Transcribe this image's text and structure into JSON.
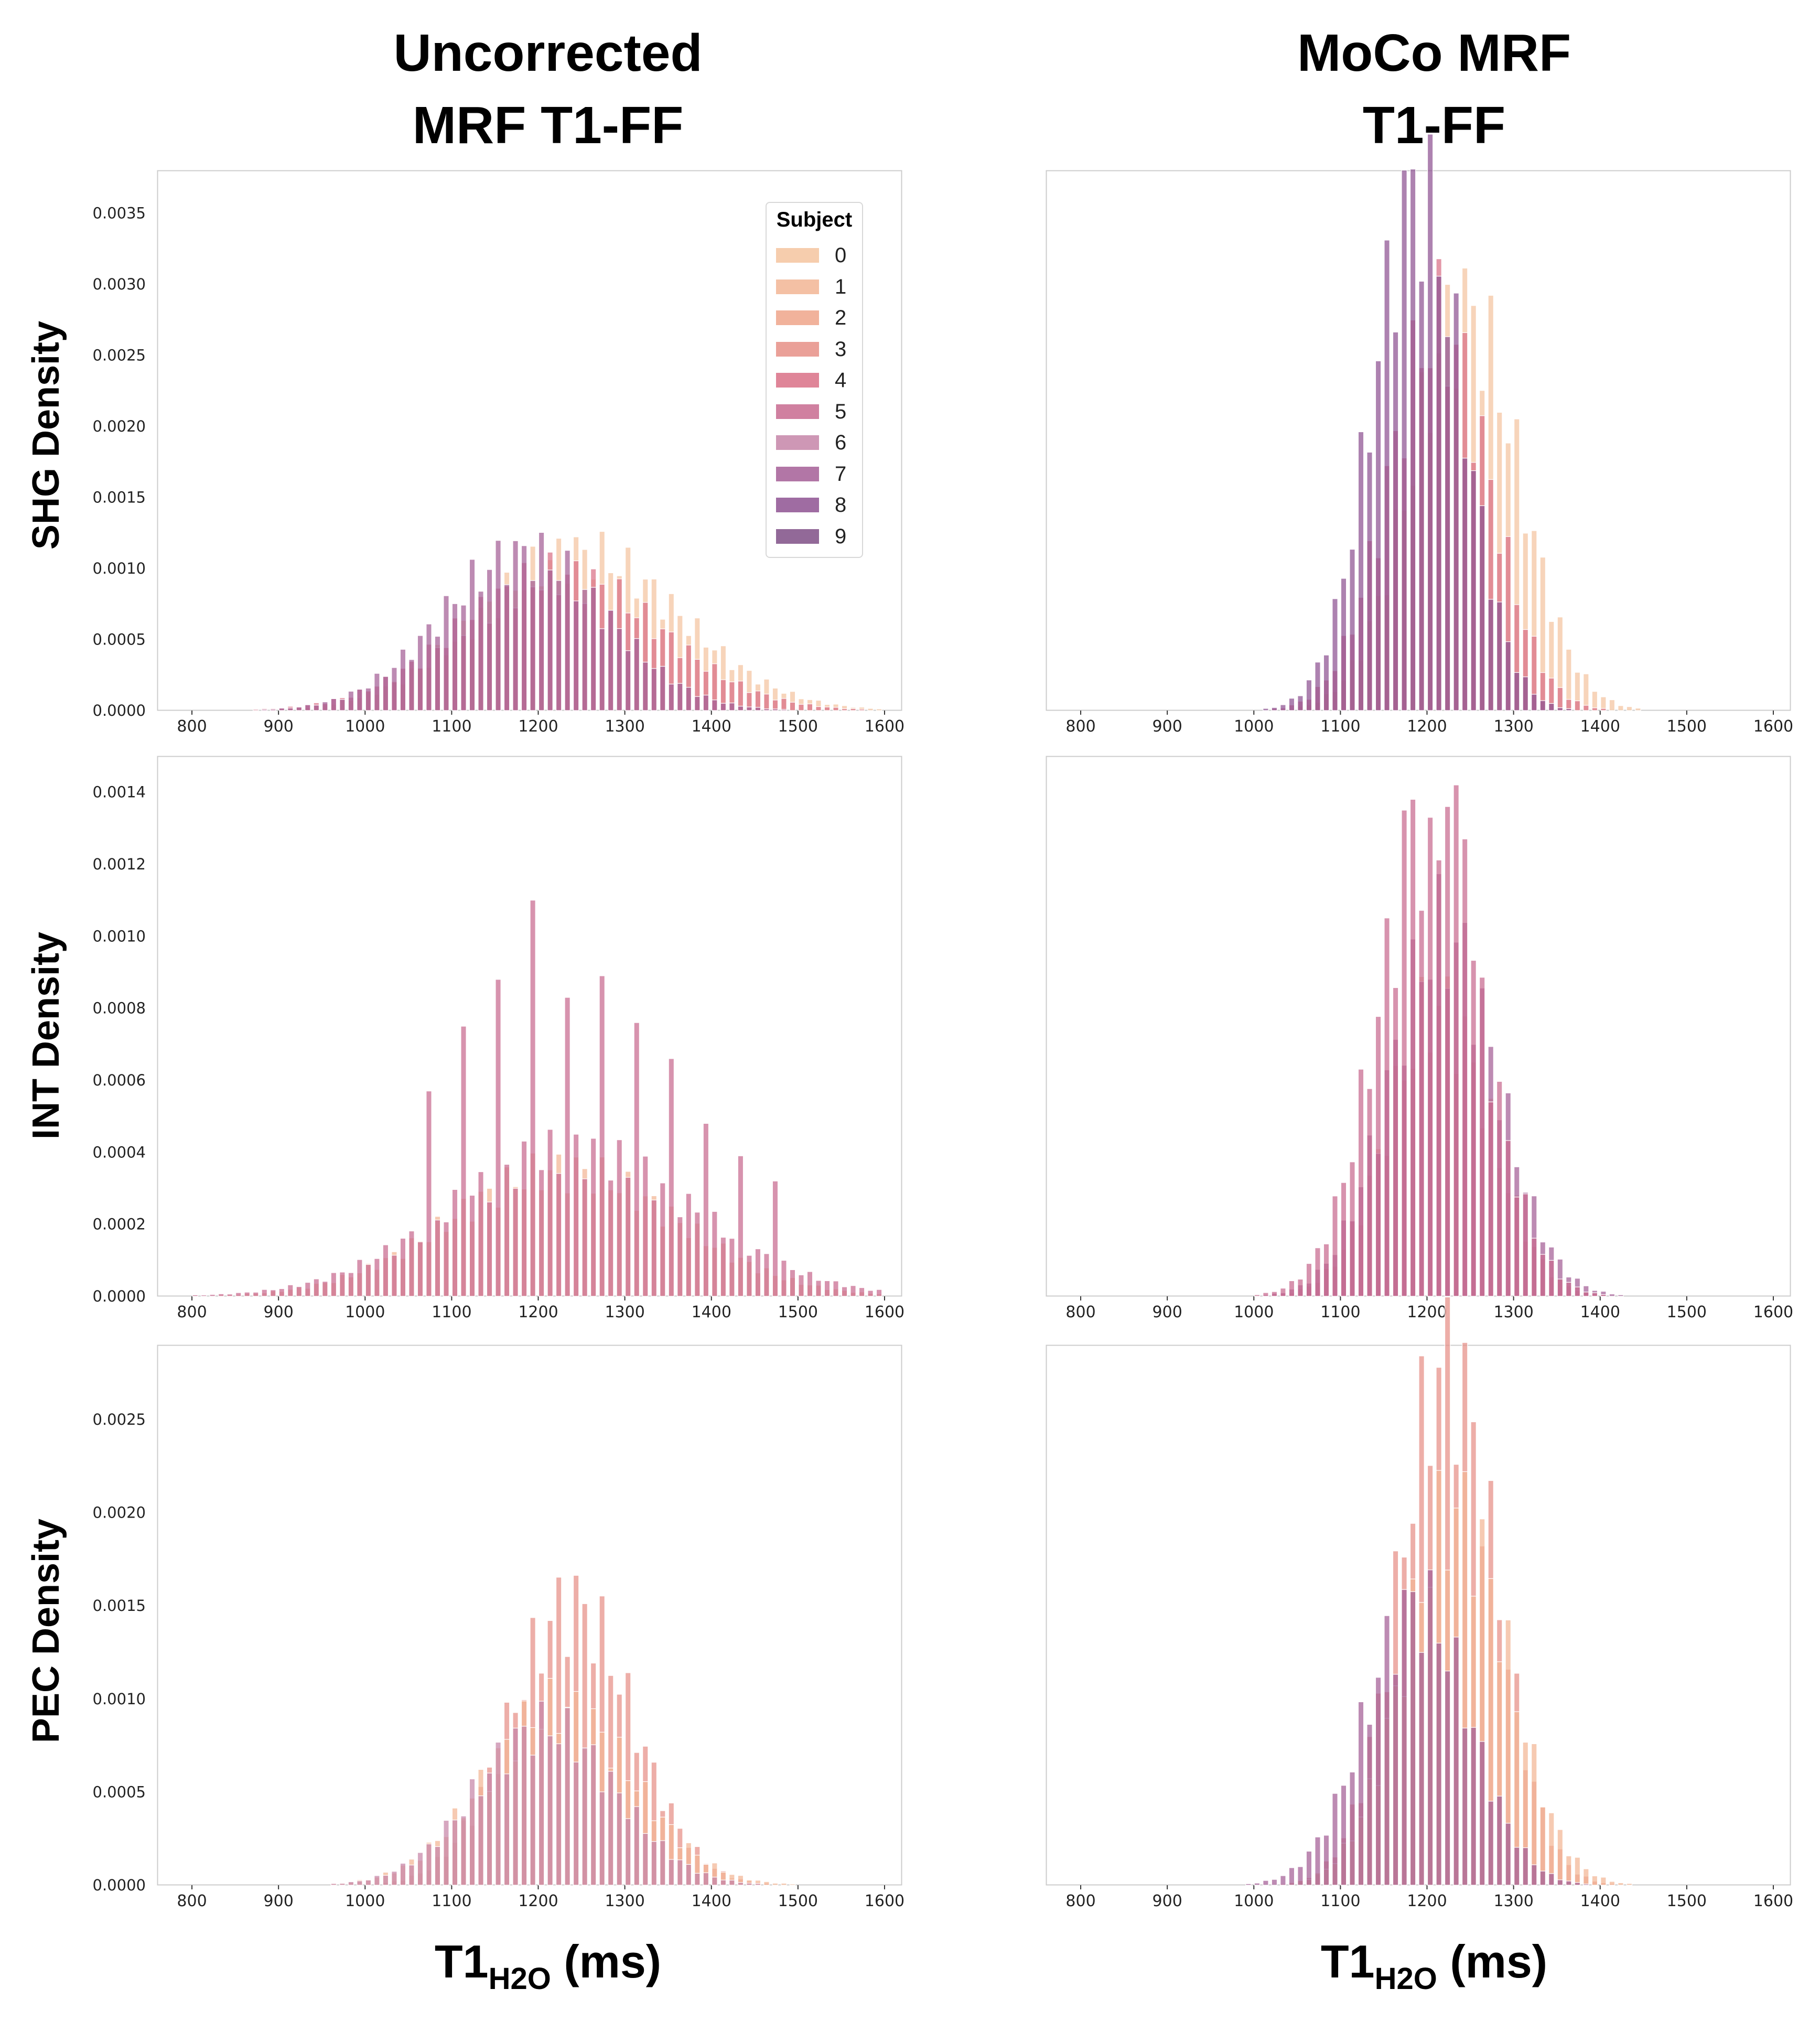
{
  "columns": [
    {
      "title_line1": "Uncorrected",
      "title_line2": "MRF T1-FF"
    },
    {
      "title_line1": "MoCo MRF",
      "title_line2": "T1-FF"
    }
  ],
  "rows": [
    {
      "label": "SHG Density"
    },
    {
      "label": "INT Density"
    },
    {
      "label": "PEC Density"
    }
  ],
  "xlabel": {
    "main": "T1",
    "sub": "H2O",
    "unit": "(ms)"
  },
  "legend": {
    "title": "Subject",
    "items": [
      "0",
      "1",
      "2",
      "3",
      "4",
      "5",
      "6",
      "7",
      "8",
      "9"
    ],
    "colors": [
      "#f4c49f",
      "#f2b594",
      "#eea58a",
      "#e68f86",
      "#d97086",
      "#c86a8f",
      "#c685a8",
      "#a45e96",
      "#8e5292",
      "#7f4f86"
    ]
  },
  "chart_data": [
    {
      "type": "bar",
      "panel": "uncorrected-SHG",
      "row": 0,
      "col": 0,
      "xlim": [
        760,
        1620
      ],
      "ylim": [
        0,
        0.0038
      ],
      "xticks": [
        "800",
        "900",
        "1000",
        "1100",
        "1200",
        "1300",
        "1400",
        "1500",
        "1600"
      ],
      "yticks": [
        "0.0000",
        "0.0005",
        "0.0010",
        "0.0015",
        "0.0020",
        "0.0025",
        "0.0030",
        "0.0035"
      ],
      "bin_start": 800,
      "bin_width": 10,
      "bins": 80,
      "envelope": [
        {
          "sigma": 115,
          "peak": 0.0011,
          "mu": 1250,
          "color": 0
        },
        {
          "sigma": 115,
          "peak": 0.00095,
          "mu": 1225,
          "color": 4
        },
        {
          "sigma": 95,
          "peak": 0.0011,
          "mu": 1185,
          "color": 7
        }
      ],
      "grid": false,
      "legend": "top-right"
    },
    {
      "type": "bar",
      "panel": "moco-SHG",
      "row": 0,
      "col": 1,
      "xlim": [
        760,
        1620
      ],
      "ylim": [
        0,
        0.0038
      ],
      "xticks": [
        "800",
        "900",
        "1000",
        "1100",
        "1200",
        "1300",
        "1400",
        "1500",
        "1600"
      ],
      "bin_start": 800,
      "bin_width": 10,
      "bins": 80,
      "envelope": [
        {
          "sigma": 62,
          "peak": 0.0028,
          "mu": 1245,
          "color": 0
        },
        {
          "sigma": 58,
          "peak": 0.0027,
          "mu": 1215,
          "color": 4
        },
        {
          "sigma": 52,
          "peak": 0.00363,
          "mu": 1190,
          "color": 8
        }
      ],
      "grid": false
    },
    {
      "type": "bar",
      "panel": "uncorrected-INT",
      "row": 1,
      "col": 0,
      "xlim": [
        760,
        1620
      ],
      "ylim": [
        0,
        0.0015
      ],
      "xticks": [
        "800",
        "900",
        "1000",
        "1100",
        "1200",
        "1300",
        "1400",
        "1500",
        "1600"
      ],
      "yticks": [
        "0.0000",
        "0.0002",
        "0.0004",
        "0.0006",
        "0.0008",
        "0.0010",
        "0.0012",
        "0.0014"
      ],
      "bin_start": 800,
      "bin_width": 10,
      "bins": 80,
      "peaks_by_bin": {
        "27": 0.00057,
        "31": 0.00075,
        "35": 0.00088,
        "39": 0.0011,
        "43": 0.00083,
        "47": 0.00089,
        "51": 0.00076,
        "55": 0.00066,
        "59": 0.00048,
        "63": 0.00039,
        "67": 0.00032
      },
      "envelope": [
        {
          "sigma": 130,
          "peak": 0.00035,
          "mu": 1230,
          "color": 1
        },
        {
          "sigma": 140,
          "peak": 0.0004,
          "mu": 1240,
          "color": 5
        }
      ],
      "grid": false
    },
    {
      "type": "bar",
      "panel": "moco-INT",
      "row": 1,
      "col": 1,
      "xlim": [
        760,
        1620
      ],
      "ylim": [
        0,
        0.0015
      ],
      "xticks": [
        "800",
        "900",
        "1000",
        "1100",
        "1200",
        "1300",
        "1400",
        "1500",
        "1600"
      ],
      "bin_start": 800,
      "bin_width": 10,
      "bins": 80,
      "peaks_by_bin": {
        "37": 0.00135,
        "38": 0.00138,
        "40": 0.00133,
        "42": 0.00136,
        "43": 0.00142,
        "44": 0.00127
      },
      "envelope": [
        {
          "sigma": 58,
          "peak": 0.0008,
          "mu": 1215,
          "color": 1
        },
        {
          "sigma": 62,
          "peak": 0.001,
          "mu": 1220,
          "color": 7
        },
        {
          "sigma": 60,
          "peak": 0.0013,
          "mu": 1205,
          "color": 5
        }
      ],
      "grid": false
    },
    {
      "type": "bar",
      "panel": "uncorrected-PEC",
      "row": 2,
      "col": 0,
      "xlim": [
        760,
        1620
      ],
      "ylim": [
        0,
        0.0029
      ],
      "xticks": [
        "800",
        "900",
        "1000",
        "1100",
        "1200",
        "1300",
        "1400",
        "1500",
        "1600"
      ],
      "yticks": [
        "0.0000",
        "0.0005",
        "0.0010",
        "0.0015",
        "0.0020",
        "0.0025"
      ],
      "bin_start": 800,
      "bin_width": 10,
      "bins": 80,
      "envelope": [
        {
          "sigma": 70,
          "peak": 0.0015,
          "mu": 1240,
          "color": 3
        },
        {
          "sigma": 85,
          "peak": 0.00095,
          "mu": 1225,
          "color": 1
        },
        {
          "sigma": 80,
          "peak": 0.00085,
          "mu": 1210,
          "color": 6
        }
      ],
      "grid": false
    },
    {
      "type": "bar",
      "panel": "moco-PEC",
      "row": 2,
      "col": 1,
      "xlim": [
        760,
        1620
      ],
      "ylim": [
        0,
        0.0029
      ],
      "xticks": [
        "800",
        "900",
        "1000",
        "1100",
        "1200",
        "1300",
        "1400",
        "1500",
        "1600"
      ],
      "bin_start": 800,
      "bin_width": 10,
      "bins": 80,
      "envelope": [
        {
          "sigma": 55,
          "peak": 0.0028,
          "mu": 1225,
          "color": 3
        },
        {
          "sigma": 60,
          "peak": 0.002,
          "mu": 1235,
          "color": 1
        },
        {
          "sigma": 60,
          "peak": 0.0015,
          "mu": 1190,
          "color": 7
        }
      ],
      "grid": false
    }
  ]
}
